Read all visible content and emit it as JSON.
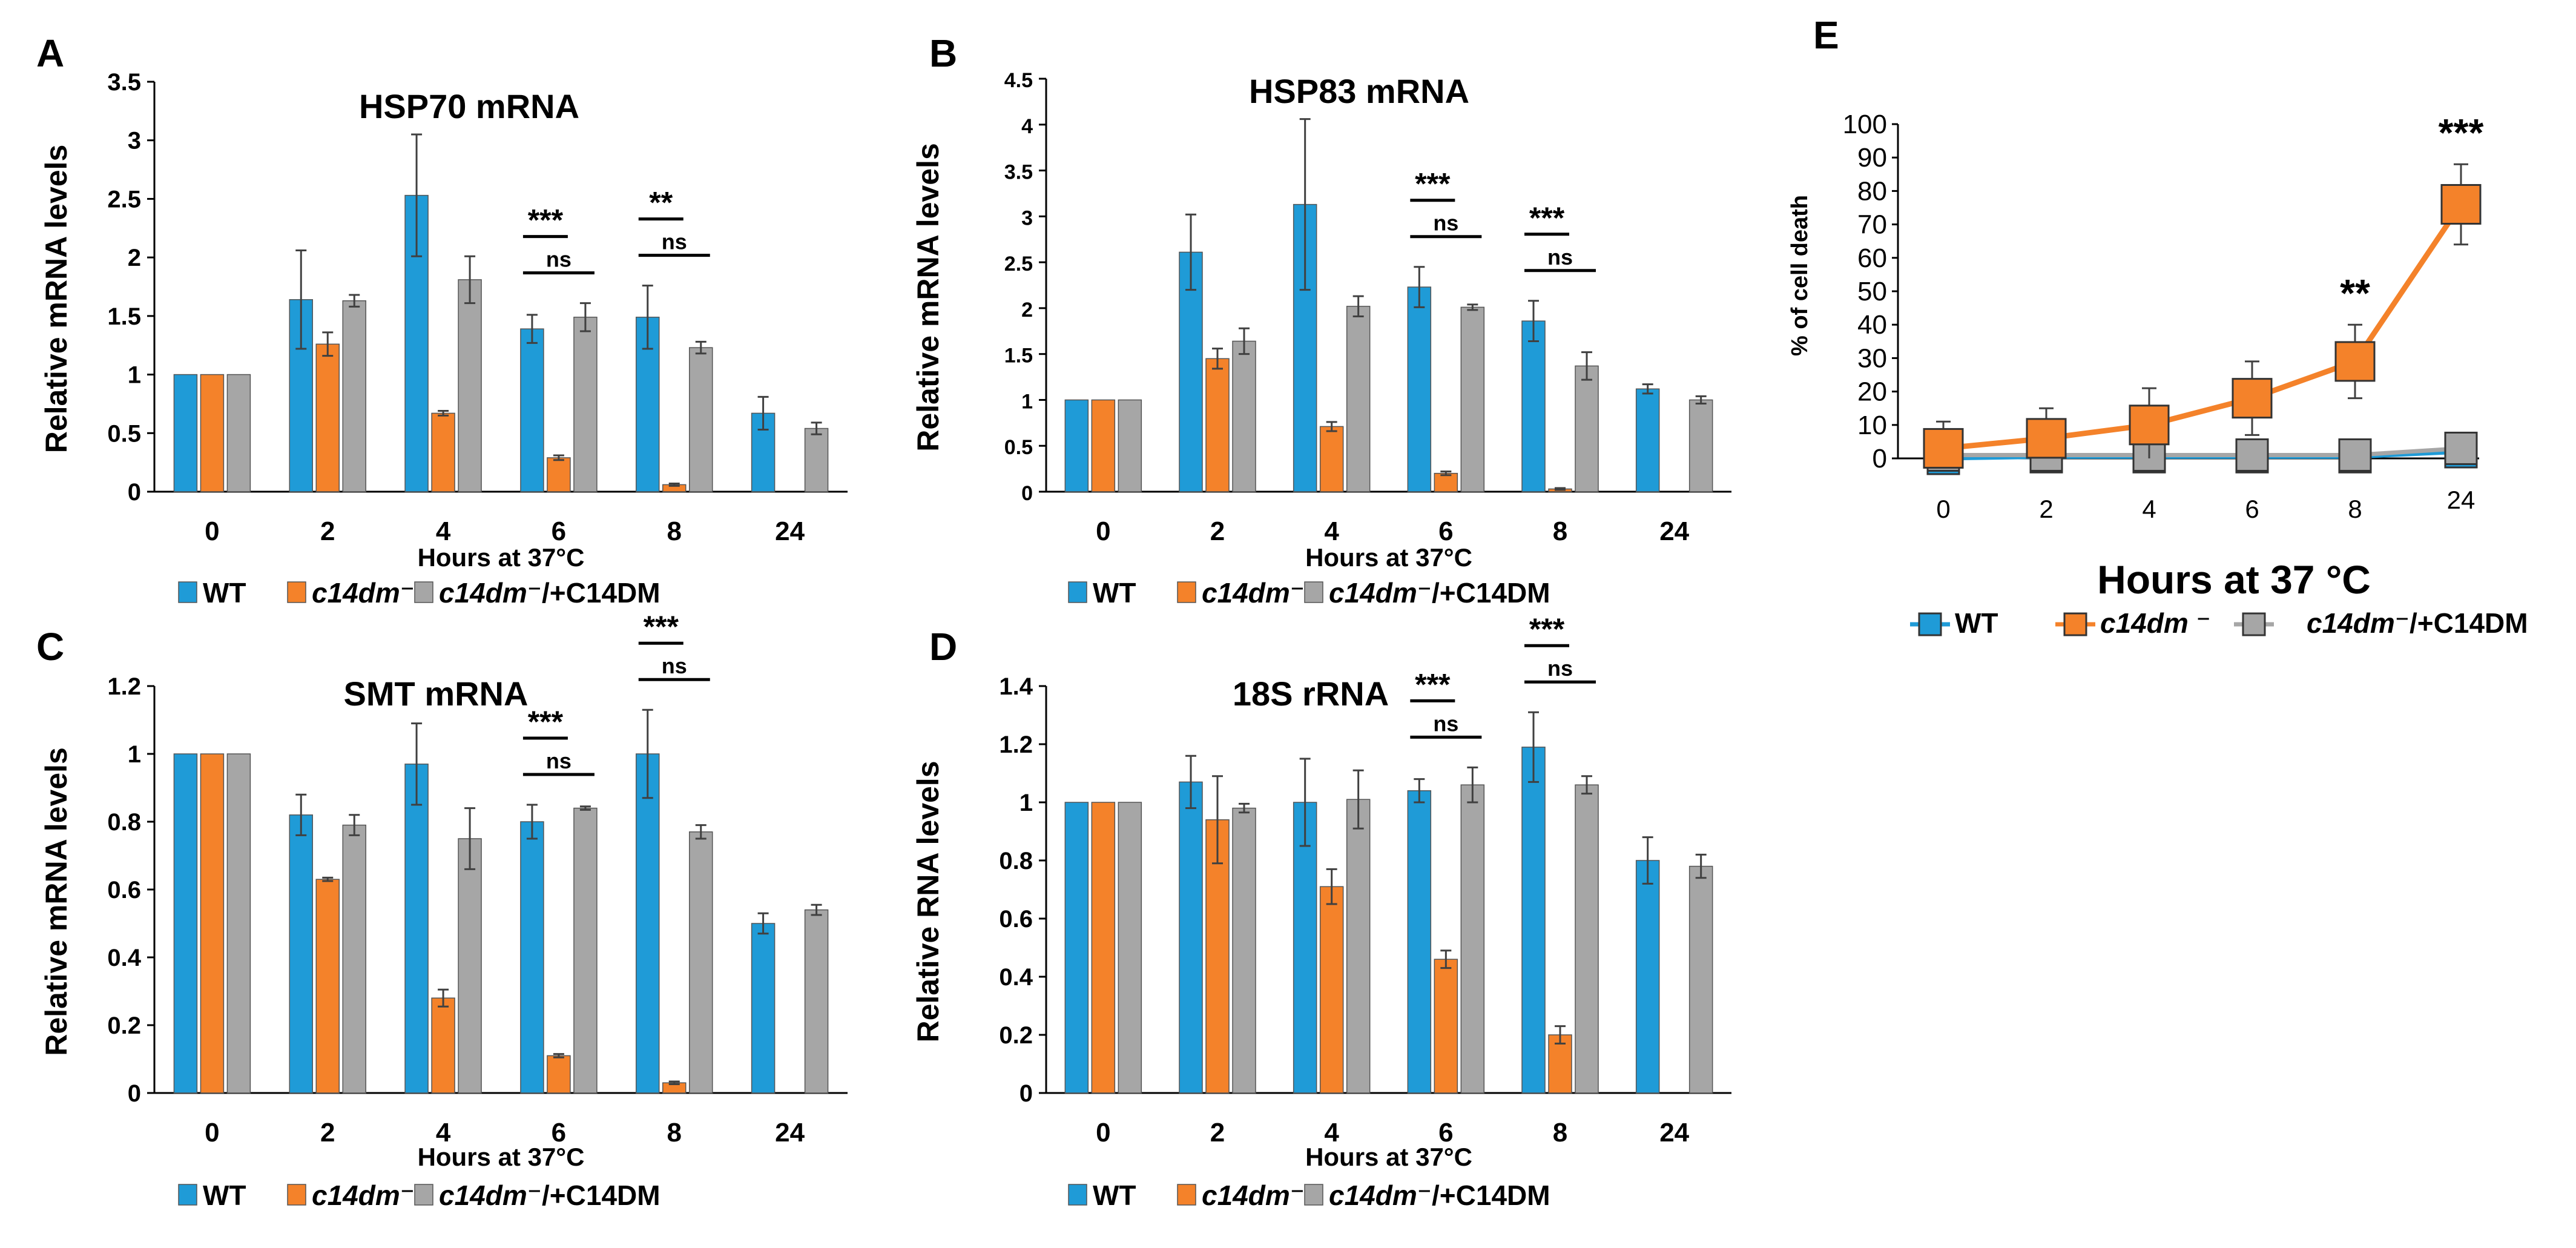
{
  "colors": {
    "wt": "#1f9bd7",
    "mut": "#f4822a",
    "res": "#a6a6a6",
    "axis": "#000000",
    "err": "#404040"
  },
  "chart_data": [
    {
      "id": "A",
      "type": "bar",
      "title": "HSP70 mRNA",
      "xlabel": "Hours at 37°C",
      "ylabel": "Relative mRNA levels",
      "ylim": [
        0,
        3.5
      ],
      "yticks": [
        "0",
        "0.5",
        "1",
        "1.5",
        "2",
        "2.5",
        "3",
        "3.5"
      ],
      "categories": [
        "0",
        "2",
        "4",
        "6",
        "8",
        "24"
      ],
      "series": [
        {
          "name": "WT",
          "values": [
            1,
            1.64,
            2.53,
            1.39,
            1.49,
            0.67
          ],
          "errors": [
            0,
            0.42,
            0.52,
            0.12,
            0.27,
            0.14
          ]
        },
        {
          "name": "c14dm⁻",
          "values": [
            1,
            1.26,
            0.67,
            0.29,
            0.06,
            null
          ],
          "errors": [
            0,
            0.1,
            0.02,
            0.02,
            0.01,
            null
          ]
        },
        {
          "name": "c14dm⁻/+C14DM",
          "values": [
            1,
            1.63,
            1.81,
            1.49,
            1.23,
            0.54
          ],
          "errors": [
            0,
            0.05,
            0.2,
            0.12,
            0.05,
            0.05
          ]
        }
      ],
      "annotations": [
        {
          "text": "***",
          "group": 3,
          "from": 0,
          "to": 1
        },
        {
          "text": "ns",
          "group": 3,
          "from": 0,
          "to": 2
        },
        {
          "text": "**",
          "group": 4,
          "from": 0,
          "to": 1
        },
        {
          "text": "ns",
          "group": 4,
          "from": 0,
          "to": 2
        }
      ],
      "legend": [
        "WT",
        "c14dm⁻",
        "c14dm⁻/+C14DM"
      ]
    },
    {
      "id": "B",
      "type": "bar",
      "title": "HSP83 mRNA",
      "xlabel": "Hours at 37°C",
      "ylabel": "Relative mRNA levels",
      "ylim": [
        0,
        4.5
      ],
      "yticks": [
        "0",
        "0.5",
        "1",
        "1.5",
        "2",
        "2.5",
        "3",
        "3.5",
        "4",
        "4.5"
      ],
      "categories": [
        "0",
        "2",
        "4",
        "6",
        "8",
        "24"
      ],
      "series": [
        {
          "name": "WT",
          "values": [
            1,
            2.61,
            3.13,
            2.23,
            1.86,
            1.12
          ],
          "errors": [
            0,
            0.41,
            0.93,
            0.22,
            0.22,
            0.05
          ]
        },
        {
          "name": "c14dm⁻",
          "values": [
            1,
            1.45,
            0.71,
            0.2,
            0.03,
            null
          ],
          "errors": [
            0,
            0.11,
            0.05,
            0.02,
            0.01,
            null
          ]
        },
        {
          "name": "c14dm⁻/+C14DM",
          "values": [
            1,
            1.64,
            2.02,
            2.01,
            1.37,
            1.0
          ],
          "errors": [
            0,
            0.14,
            0.11,
            0.03,
            0.15,
            0.04
          ]
        }
      ],
      "annotations": [
        {
          "text": "***",
          "group": 3,
          "from": 0,
          "to": 1
        },
        {
          "text": "ns",
          "group": 3,
          "from": 0,
          "to": 2
        },
        {
          "text": "***",
          "group": 4,
          "from": 0,
          "to": 1
        },
        {
          "text": "ns",
          "group": 4,
          "from": 0,
          "to": 2
        }
      ],
      "legend": [
        "WT",
        "c14dm⁻",
        "c14dm⁻/+C14DM"
      ]
    },
    {
      "id": "C",
      "type": "bar",
      "title": "SMT mRNA",
      "xlabel": "Hours at 37°C",
      "ylabel": "Relative mRNA levels",
      "ylim": [
        0,
        1.2
      ],
      "yticks": [
        "0",
        "0.2",
        "0.4",
        "0.6",
        "0.8",
        "1",
        "1.2"
      ],
      "categories": [
        "0",
        "2",
        "4",
        "6",
        "8",
        "24"
      ],
      "series": [
        {
          "name": "WT",
          "values": [
            1,
            0.82,
            0.97,
            0.8,
            1.0,
            0.5
          ],
          "errors": [
            0,
            0.06,
            0.12,
            0.05,
            0.13,
            0.03
          ]
        },
        {
          "name": "c14dm⁻",
          "values": [
            1,
            0.63,
            0.28,
            0.11,
            0.03,
            null
          ],
          "errors": [
            0,
            0.005,
            0.025,
            0.005,
            0.004,
            null
          ]
        },
        {
          "name": "c14dm⁻/+C14DM",
          "values": [
            1,
            0.79,
            0.75,
            0.84,
            0.77,
            0.54
          ],
          "errors": [
            0,
            0.03,
            0.09,
            0.005,
            0.02,
            0.015
          ]
        }
      ],
      "annotations": [
        {
          "text": "***",
          "group": 3,
          "from": 0,
          "to": 1
        },
        {
          "text": "ns",
          "group": 3,
          "from": 0,
          "to": 2
        },
        {
          "text": "***",
          "group": 4,
          "from": 0,
          "to": 1
        },
        {
          "text": "ns",
          "group": 4,
          "from": 0,
          "to": 2
        }
      ],
      "legend": [
        "WT",
        "c14dm⁻",
        "c14dm⁻/+C14DM"
      ]
    },
    {
      "id": "D",
      "type": "bar",
      "title": "18S rRNA",
      "xlabel": "Hours at 37°C",
      "ylabel": "Relative RNA levels",
      "ylim": [
        0,
        1.4
      ],
      "yticks": [
        "0",
        "0.2",
        "0.4",
        "0.6",
        "0.8",
        "1",
        "1.2",
        "1.4"
      ],
      "categories": [
        "0",
        "2",
        "4",
        "6",
        "8",
        "24"
      ],
      "series": [
        {
          "name": "WT",
          "values": [
            1,
            1.07,
            1.0,
            1.04,
            1.19,
            0.8
          ],
          "errors": [
            0,
            0.09,
            0.15,
            0.04,
            0.12,
            0.08
          ]
        },
        {
          "name": "c14dm⁻",
          "values": [
            1,
            0.94,
            0.71,
            0.46,
            0.2,
            null
          ],
          "errors": [
            0,
            0.15,
            0.06,
            0.03,
            0.03,
            null
          ]
        },
        {
          "name": "c14dm⁻/+C14DM",
          "values": [
            1,
            0.98,
            1.01,
            1.06,
            1.06,
            0.78
          ],
          "errors": [
            0,
            0.015,
            0.1,
            0.06,
            0.03,
            0.04
          ]
        }
      ],
      "annotations": [
        {
          "text": "***",
          "group": 3,
          "from": 0,
          "to": 1
        },
        {
          "text": "ns",
          "group": 3,
          "from": 0,
          "to": 2
        },
        {
          "text": "***",
          "group": 4,
          "from": 0,
          "to": 1
        },
        {
          "text": "ns",
          "group": 4,
          "from": 0,
          "to": 2
        }
      ],
      "legend": [
        "WT",
        "c14dm⁻",
        "c14dm⁻/+C14DM"
      ]
    },
    {
      "id": "E",
      "type": "line",
      "title": "",
      "xlabel": "Hours at 37 °C",
      "ylabel": "% of cell death",
      "ylim": [
        0,
        100
      ],
      "yticks": [
        "0",
        "10",
        "20",
        "30",
        "40",
        "50",
        "60",
        "70",
        "80",
        "90",
        "100"
      ],
      "categories": [
        "0",
        "2",
        "4",
        "6",
        "8",
        "24"
      ],
      "series": [
        {
          "name": "WT",
          "values": [
            0,
            0.5,
            0.5,
            0.5,
            0.5,
            2
          ],
          "errors": [
            0,
            0,
            0,
            0,
            0,
            0
          ]
        },
        {
          "name": "c14dm⁻",
          "values": [
            3,
            6,
            10,
            18,
            29,
            76
          ],
          "errors": [
            8,
            9,
            11,
            11,
            11,
            12
          ]
        },
        {
          "name": "c14dm⁻/+C14DM",
          "values": [
            1,
            1,
            1,
            1,
            1,
            3
          ],
          "errors": [
            0,
            0,
            0,
            0,
            0,
            0
          ]
        }
      ],
      "annotations": [
        {
          "text": "**",
          "group": 4,
          "series": 1
        },
        {
          "text": "***",
          "group": 5,
          "series": 1
        }
      ],
      "legend": [
        "WT",
        "c14dm ⁻",
        "c14dm⁻/+C14DM"
      ]
    }
  ]
}
